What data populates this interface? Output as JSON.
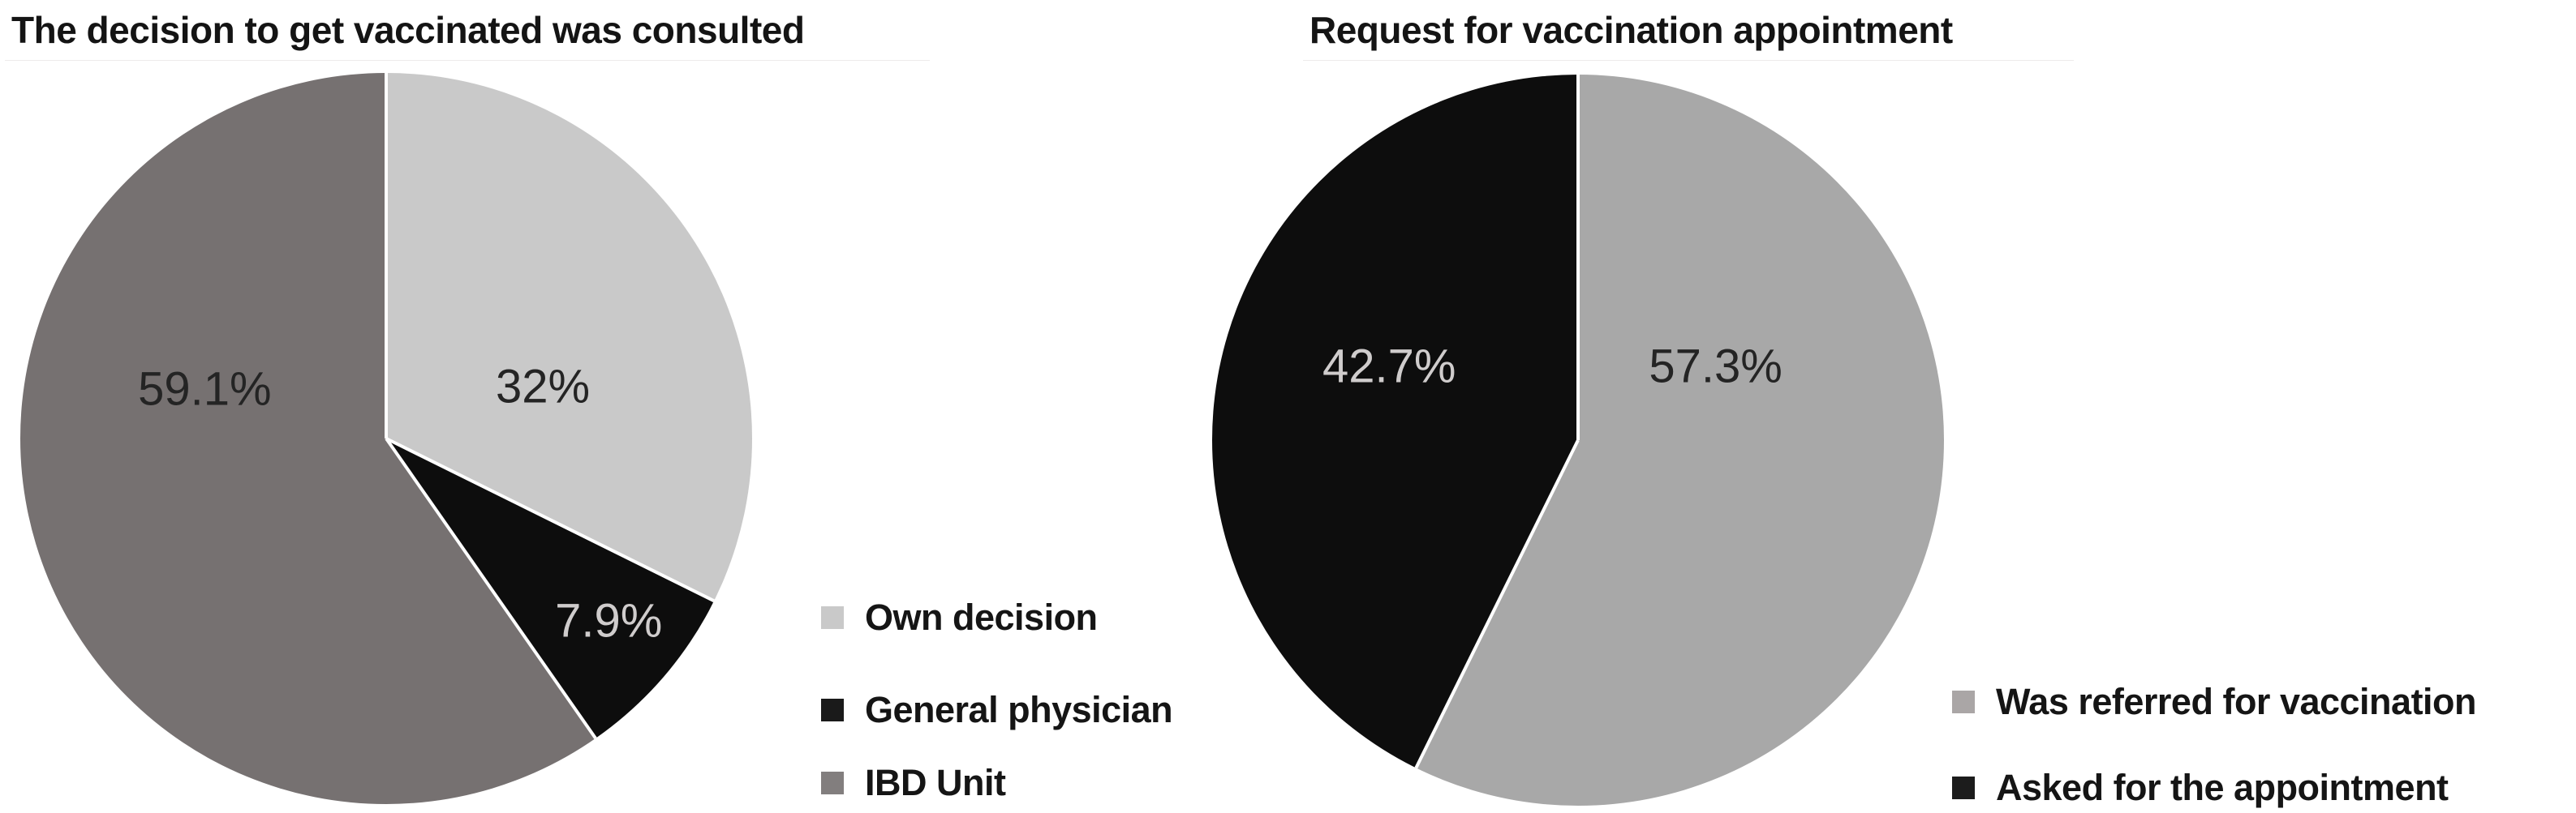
{
  "figure": {
    "kind": "two-pie-chart figure, grayscale, survey results"
  },
  "chart_data": [
    {
      "type": "pie",
      "title": "The decision to get vaccinated was consulted",
      "categories": [
        "Own decision",
        "General physician",
        "IBD Unit"
      ],
      "values": [
        32,
        7.9,
        59.1
      ],
      "value_labels": [
        "32%",
        "7.9%",
        "59.1%"
      ],
      "colors": [
        "#c9c9c9",
        "#0d0d0d",
        "#767171"
      ],
      "legend_swatch_colors": [
        "#c9c9c9",
        "#1a1a1a",
        "#827e7e"
      ],
      "start_angle": "top",
      "direction": "clockwise",
      "legend_position": "right-bottom"
    },
    {
      "type": "pie",
      "title": "Request for vaccination appointment",
      "categories": [
        "Was referred for vaccination",
        "Asked for the appointment"
      ],
      "values": [
        57.3,
        42.7
      ],
      "value_labels": [
        "57.3%",
        "42.7%"
      ],
      "colors": [
        "#a8a8a8",
        "#0d0d0d"
      ],
      "legend_swatch_colors": [
        "#aaa6a6",
        "#1c1c1c"
      ],
      "start_angle": "top",
      "direction": "clockwise",
      "legend_position": "right-bottom"
    }
  ]
}
